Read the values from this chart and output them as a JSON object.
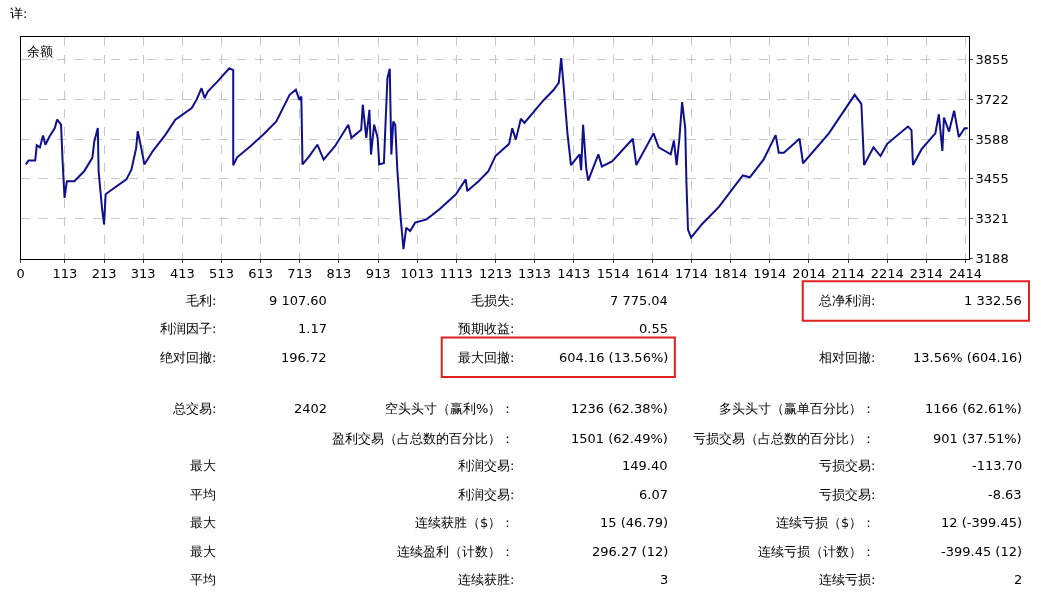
{
  "chart_data": [
    {
      "type": "line",
      "title": "详:",
      "annotations": [
        "余额"
      ],
      "x": [
        13,
        20,
        37,
        41,
        49,
        57,
        63,
        74,
        87,
        93,
        103,
        107,
        112,
        118,
        137,
        162,
        183,
        188,
        197,
        199,
        208,
        213,
        217,
        228,
        270,
        283,
        295,
        299,
        308,
        316,
        337,
        370,
        395,
        437,
        449,
        462,
        470,
        478,
        503,
        533,
        543,
        543,
        553,
        587,
        620,
        653,
        687,
        703,
        712,
        717,
        720,
        737,
        758,
        774,
        803,
        837,
        845,
        870,
        874,
        883,
        891,
        895,
        903,
        912,
        916,
        928,
        937,
        943,
        947,
        952,
        957,
        962,
        970,
        978,
        985,
        995,
        1008,
        1037,
        1070,
        1112,
        1137,
        1141,
        1170,
        1195,
        1213,
        1248,
        1256,
        1265,
        1278,
        1287,
        1336,
        1362,
        1375,
        1381,
        1387,
        1397,
        1406,
        1428,
        1432,
        1437,
        1445,
        1450,
        1476,
        1485,
        1511,
        1564,
        1573,
        1617,
        1630,
        1661,
        1669,
        1676,
        1683,
        1690,
        1698,
        1701,
        1705,
        1713,
        1740,
        1784,
        1845,
        1863,
        1898,
        1929,
        1937,
        1950,
        1990,
        1999,
        2065,
        2131,
        2148,
        2155,
        2179,
        2197,
        2214,
        2267,
        2276,
        2280,
        2302,
        2337,
        2346,
        2355,
        2359,
        2372,
        2385,
        2397,
        2412,
        2420
      ],
      "series": [
        {
          "color": "#10108f",
          "values": [
            3503,
            3516,
            3516,
            3567,
            3560,
            3600,
            3569,
            3597,
            3625,
            3653,
            3636,
            3514,
            3391,
            3447,
            3447,
            3480,
            3525,
            3580,
            3625,
            3480,
            3353,
            3302,
            3403,
            3414,
            3453,
            3486,
            3558,
            3614,
            3558,
            3503,
            3547,
            3603,
            3653,
            3692,
            3719,
            3758,
            3725,
            3747,
            3781,
            3825,
            3819,
            3500,
            3527,
            3564,
            3603,
            3647,
            3736,
            3753,
            3719,
            3730,
            3503,
            3530,
            3569,
            3519,
            3564,
            3636,
            3592,
            3619,
            3703,
            3592,
            3686,
            3536,
            3636,
            3592,
            3503,
            3508,
            3792,
            3823,
            3536,
            3647,
            3636,
            3492,
            3336,
            3219,
            3291,
            3280,
            3308,
            3319,
            3353,
            3403,
            3453,
            3414,
            3447,
            3480,
            3531,
            3572,
            3624,
            3586,
            3656,
            3642,
            3718,
            3753,
            3777,
            3859,
            3771,
            3607,
            3501,
            3537,
            3484,
            3636,
            3490,
            3449,
            3537,
            3496,
            3513,
            3589,
            3501,
            3607,
            3560,
            3537,
            3583,
            3501,
            3589,
            3712,
            3624,
            3443,
            3285,
            3258,
            3302,
            3361,
            3466,
            3460,
            3519,
            3601,
            3542,
            3542,
            3589,
            3507,
            3607,
            3736,
            3706,
            3501,
            3560,
            3531,
            3572,
            3630,
            3618,
            3501,
            3554,
            3607,
            3671,
            3548,
            3660,
            3613,
            3683,
            3595,
            3624,
            3624
          ]
        }
      ],
      "xlim": [
        0,
        2423
      ],
      "xticks": [
        0,
        113,
        213,
        313,
        413,
        513,
        613,
        713,
        813,
        913,
        1013,
        1113,
        1213,
        1313,
        1413,
        1514,
        1614,
        1714,
        1814,
        1914,
        2014,
        2114,
        2214,
        2314,
        2414
      ],
      "ylim": [
        3188,
        3928
      ],
      "yticks": [
        3188,
        3321,
        3455,
        3588,
        3722,
        3855
      ],
      "grid": true,
      "line_style": "solid"
    },
    {
      "type": "other",
      "annotations": [
        "毛利:",
        "9 107.60",
        "毛损失:",
        "7 775.04",
        "总净利润:",
        "1 332.56",
        "利润因子:",
        "1.17",
        "预期收益:",
        "0.55",
        "绝对回撤:",
        "196.72",
        "最大回撤:",
        "604.16 (13.56%)",
        "相对回撤:",
        "13.56% (604.16)",
        "总交易:",
        "2402",
        "空头头寸（赢利%）：",
        "1236 (62.38%)",
        "多头头寸（赢单百分比）：",
        "1166 (62.61%)",
        "盈利交易（占总数的百分比）：",
        "1501 (62.49%)",
        "亏损交易（占总数的百分比）：",
        "901 (37.51%)",
        "最大",
        "利润交易:",
        "149.40",
        "亏损交易:",
        "-113.70",
        "平均",
        "利润交易:",
        "6.07",
        "亏损交易:",
        "-8.63",
        "最大",
        "连续获胜（$）：",
        "15 (46.79)",
        "连续亏损（$）：",
        "12 (-399.45)",
        "最大",
        "连续盈利（计数）：",
        "296.27 (12)",
        "连续亏损（计数）：",
        "-399.45 (12)",
        "平均",
        "连续获胜:",
        "3",
        "连续亏损:",
        "2"
      ]
    }
  ]
}
